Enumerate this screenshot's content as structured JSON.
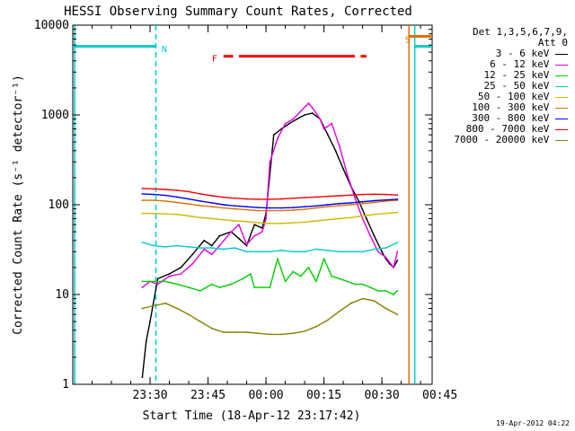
{
  "chart_data": {
    "type": "line",
    "title": "HESSI Observing Summary Count Rates, Corrected",
    "xlabel": "Start Time (18-Apr-12 23:17:42)",
    "ylabel": "Corrected Count Rate (s⁻¹ detector⁻¹)",
    "yscale": "log",
    "ylim": [
      1,
      10000
    ],
    "xlim_minutes": [
      -5,
      88
    ],
    "x_ticks": [
      {
        "minute": 15,
        "label": "23:30"
      },
      {
        "minute": 30,
        "label": "23:45"
      },
      {
        "minute": 45,
        "label": "00:00"
      },
      {
        "minute": 60,
        "label": "00:15"
      },
      {
        "minute": 75,
        "label": "00:30"
      },
      {
        "minute": 90,
        "label": "00:45"
      }
    ],
    "y_ticks": [
      {
        "value": 1,
        "label": "1"
      },
      {
        "value": 10,
        "label": "10"
      },
      {
        "value": 100,
        "label": "100"
      },
      {
        "value": 1000,
        "label": "1000"
      },
      {
        "value": 10000,
        "label": "10000"
      }
    ],
    "legend_header": [
      "Det 1,3,5,6,7,9,",
      "Att 0"
    ],
    "series": [
      {
        "name": "3 - 6 keV",
        "color": "#000000",
        "points": [
          [
            13,
            1.2
          ],
          [
            14,
            3
          ],
          [
            15,
            5
          ],
          [
            17,
            15
          ],
          [
            20,
            17
          ],
          [
            23,
            20
          ],
          [
            26,
            28
          ],
          [
            29,
            40
          ],
          [
            31,
            35
          ],
          [
            33,
            45
          ],
          [
            36,
            50
          ],
          [
            38,
            42
          ],
          [
            40,
            35
          ],
          [
            42,
            60
          ],
          [
            44,
            55
          ],
          [
            45,
            80
          ],
          [
            47,
            600
          ],
          [
            49,
            700
          ],
          [
            51,
            800
          ],
          [
            53,
            900
          ],
          [
            55,
            1000
          ],
          [
            57,
            1050
          ],
          [
            59,
            900
          ],
          [
            61,
            600
          ],
          [
            63,
            400
          ],
          [
            65,
            250
          ],
          [
            67,
            160
          ],
          [
            69,
            110
          ],
          [
            71,
            70
          ],
          [
            73,
            45
          ],
          [
            75,
            30
          ],
          [
            76,
            25
          ],
          [
            77,
            22
          ],
          [
            78,
            20
          ],
          [
            79,
            24
          ]
        ]
      },
      {
        "name": "6 - 12 keV",
        "color": "#e000e0",
        "points": [
          [
            13,
            12
          ],
          [
            15,
            14
          ],
          [
            17,
            13
          ],
          [
            20,
            16
          ],
          [
            23,
            17
          ],
          [
            26,
            22
          ],
          [
            29,
            32
          ],
          [
            31,
            28
          ],
          [
            33,
            35
          ],
          [
            36,
            50
          ],
          [
            38,
            60
          ],
          [
            40,
            36
          ],
          [
            42,
            45
          ],
          [
            44,
            50
          ],
          [
            45,
            70
          ],
          [
            46,
            300
          ],
          [
            48,
            550
          ],
          [
            50,
            800
          ],
          [
            52,
            900
          ],
          [
            54,
            1100
          ],
          [
            56,
            1350
          ],
          [
            57,
            1200
          ],
          [
            59,
            900
          ],
          [
            60,
            700
          ],
          [
            62,
            800
          ],
          [
            64,
            450
          ],
          [
            66,
            220
          ],
          [
            68,
            120
          ],
          [
            70,
            70
          ],
          [
            72,
            45
          ],
          [
            74,
            30
          ],
          [
            76,
            26
          ],
          [
            78,
            20
          ],
          [
            79,
            30
          ]
        ]
      },
      {
        "name": "12 - 25 keV",
        "color": "#00cc00",
        "points": [
          [
            13,
            14
          ],
          [
            16,
            14
          ],
          [
            19,
            14
          ],
          [
            22,
            13
          ],
          [
            25,
            12
          ],
          [
            28,
            11
          ],
          [
            31,
            13
          ],
          [
            33,
            12
          ],
          [
            36,
            13
          ],
          [
            39,
            15
          ],
          [
            41,
            17
          ],
          [
            42,
            12
          ],
          [
            44,
            12
          ],
          [
            46,
            12
          ],
          [
            48,
            25
          ],
          [
            50,
            14
          ],
          [
            52,
            18
          ],
          [
            54,
            16
          ],
          [
            56,
            20
          ],
          [
            58,
            14
          ],
          [
            60,
            25
          ],
          [
            62,
            16
          ],
          [
            64,
            15
          ],
          [
            66,
            14
          ],
          [
            68,
            13
          ],
          [
            70,
            13
          ],
          [
            72,
            12
          ],
          [
            74,
            11
          ],
          [
            76,
            11
          ],
          [
            78,
            10
          ],
          [
            79,
            11
          ]
        ]
      },
      {
        "name": "25 - 50 keV",
        "color": "#00cccc",
        "points": [
          [
            13,
            38
          ],
          [
            16,
            35
          ],
          [
            19,
            34
          ],
          [
            22,
            35
          ],
          [
            25,
            34
          ],
          [
            28,
            33
          ],
          [
            31,
            33
          ],
          [
            34,
            32
          ],
          [
            37,
            33
          ],
          [
            40,
            30
          ],
          [
            43,
            30
          ],
          [
            46,
            30
          ],
          [
            49,
            31
          ],
          [
            52,
            30
          ],
          [
            55,
            30
          ],
          [
            58,
            32
          ],
          [
            61,
            31
          ],
          [
            64,
            30
          ],
          [
            67,
            30
          ],
          [
            70,
            30
          ],
          [
            73,
            32
          ],
          [
            76,
            33
          ],
          [
            79,
            38
          ]
        ]
      },
      {
        "name": "50 - 100 keV",
        "color": "#ccbb00",
        "points": [
          [
            13,
            80
          ],
          [
            16,
            80
          ],
          [
            19,
            79
          ],
          [
            22,
            78
          ],
          [
            25,
            75
          ],
          [
            28,
            72
          ],
          [
            31,
            70
          ],
          [
            34,
            68
          ],
          [
            37,
            66
          ],
          [
            40,
            65
          ],
          [
            43,
            63
          ],
          [
            46,
            62
          ],
          [
            49,
            62
          ],
          [
            52,
            63
          ],
          [
            55,
            64
          ],
          [
            58,
            66
          ],
          [
            61,
            68
          ],
          [
            64,
            70
          ],
          [
            67,
            72
          ],
          [
            70,
            75
          ],
          [
            73,
            78
          ],
          [
            76,
            80
          ],
          [
            79,
            82
          ]
        ]
      },
      {
        "name": "100 - 300 keV",
        "color": "#e07000",
        "points": [
          [
            13,
            112
          ],
          [
            16,
            112
          ],
          [
            19,
            110
          ],
          [
            22,
            106
          ],
          [
            25,
            102
          ],
          [
            28,
            98
          ],
          [
            31,
            95
          ],
          [
            34,
            92
          ],
          [
            37,
            90
          ],
          [
            40,
            88
          ],
          [
            43,
            86
          ],
          [
            46,
            86
          ],
          [
            49,
            86
          ],
          [
            52,
            87
          ],
          [
            55,
            89
          ],
          [
            58,
            92
          ],
          [
            61,
            95
          ],
          [
            64,
            98
          ],
          [
            67,
            100
          ],
          [
            70,
            103
          ],
          [
            73,
            106
          ],
          [
            76,
            110
          ],
          [
            79,
            112
          ]
        ]
      },
      {
        "name": "300 - 800 keV",
        "color": "#0000ff",
        "points": [
          [
            13,
            132
          ],
          [
            16,
            130
          ],
          [
            19,
            127
          ],
          [
            22,
            122
          ],
          [
            25,
            116
          ],
          [
            28,
            110
          ],
          [
            31,
            105
          ],
          [
            34,
            100
          ],
          [
            37,
            97
          ],
          [
            40,
            95
          ],
          [
            43,
            93
          ],
          [
            46,
            92
          ],
          [
            49,
            92
          ],
          [
            52,
            93
          ],
          [
            55,
            95
          ],
          [
            58,
            97
          ],
          [
            61,
            100
          ],
          [
            64,
            103
          ],
          [
            67,
            105
          ],
          [
            70,
            108
          ],
          [
            73,
            111
          ],
          [
            76,
            113
          ],
          [
            79,
            115
          ]
        ]
      },
      {
        "name": "800 - 7000 keV",
        "color": "#ff0000",
        "points": [
          [
            13,
            152
          ],
          [
            16,
            150
          ],
          [
            19,
            148
          ],
          [
            22,
            145
          ],
          [
            25,
            140
          ],
          [
            28,
            132
          ],
          [
            31,
            126
          ],
          [
            34,
            121
          ],
          [
            37,
            118
          ],
          [
            40,
            116
          ],
          [
            43,
            115
          ],
          [
            46,
            115
          ],
          [
            49,
            116
          ],
          [
            52,
            118
          ],
          [
            55,
            120
          ],
          [
            58,
            122
          ],
          [
            61,
            124
          ],
          [
            64,
            126
          ],
          [
            67,
            128
          ],
          [
            70,
            130
          ],
          [
            73,
            131
          ],
          [
            76,
            130
          ],
          [
            79,
            128
          ]
        ]
      },
      {
        "name": "7000 - 20000 keV",
        "color": "#808000",
        "points": [
          [
            13,
            7
          ],
          [
            16,
            7.5
          ],
          [
            19,
            8
          ],
          [
            22,
            7
          ],
          [
            25,
            6
          ],
          [
            28,
            5
          ],
          [
            31,
            4.2
          ],
          [
            34,
            3.8
          ],
          [
            37,
            3.8
          ],
          [
            40,
            3.8
          ],
          [
            43,
            3.7
          ],
          [
            46,
            3.6
          ],
          [
            49,
            3.6
          ],
          [
            52,
            3.7
          ],
          [
            55,
            3.9
          ],
          [
            58,
            4.4
          ],
          [
            61,
            5.2
          ],
          [
            64,
            6.5
          ],
          [
            67,
            8
          ],
          [
            70,
            9
          ],
          [
            73,
            8.5
          ],
          [
            76,
            7
          ],
          [
            79,
            6
          ]
        ]
      }
    ],
    "annotations": [
      {
        "text": "N",
        "color": "#00cccc",
        "minute": 18,
        "value": 5500
      },
      {
        "text": "F",
        "color": "#ff0000",
        "minute": 31,
        "value": 4300
      },
      {
        "text": "S",
        "color": "#e07000",
        "minute": 81,
        "value": 7000
      }
    ],
    "state_bars": [
      {
        "label": "night",
        "color": "#00cccc",
        "level": 5800,
        "ranges": [
          [
            -5,
            16.5
          ],
          [
            83.5,
            92
          ]
        ]
      },
      {
        "label": "flare",
        "color": "#ff0000",
        "level": 4500,
        "ranges": [
          [
            34,
            36.5
          ],
          [
            38,
            68
          ],
          [
            69.5,
            71
          ]
        ]
      },
      {
        "label": "saa",
        "color": "#e07000",
        "level": 7500,
        "ranges": [
          [
            82,
            95
          ]
        ]
      }
    ],
    "vertical_lines": [
      {
        "color": "#00cccc",
        "style": "solid",
        "minute": -4.5
      },
      {
        "color": "#00cccc",
        "style": "dashed",
        "minute": 16.5
      },
      {
        "color": "#e07000",
        "style": "solid",
        "minute": 82
      },
      {
        "color": "#00cccc",
        "style": "solid",
        "minute": 83.5
      },
      {
        "color": "#e07000",
        "style": "dashed",
        "minute": 95
      },
      {
        "color": "#00cccc",
        "style": "dashed",
        "minute": 97
      }
    ]
  },
  "footer": {
    "timestamp": "19-Apr-2012 04:22"
  }
}
